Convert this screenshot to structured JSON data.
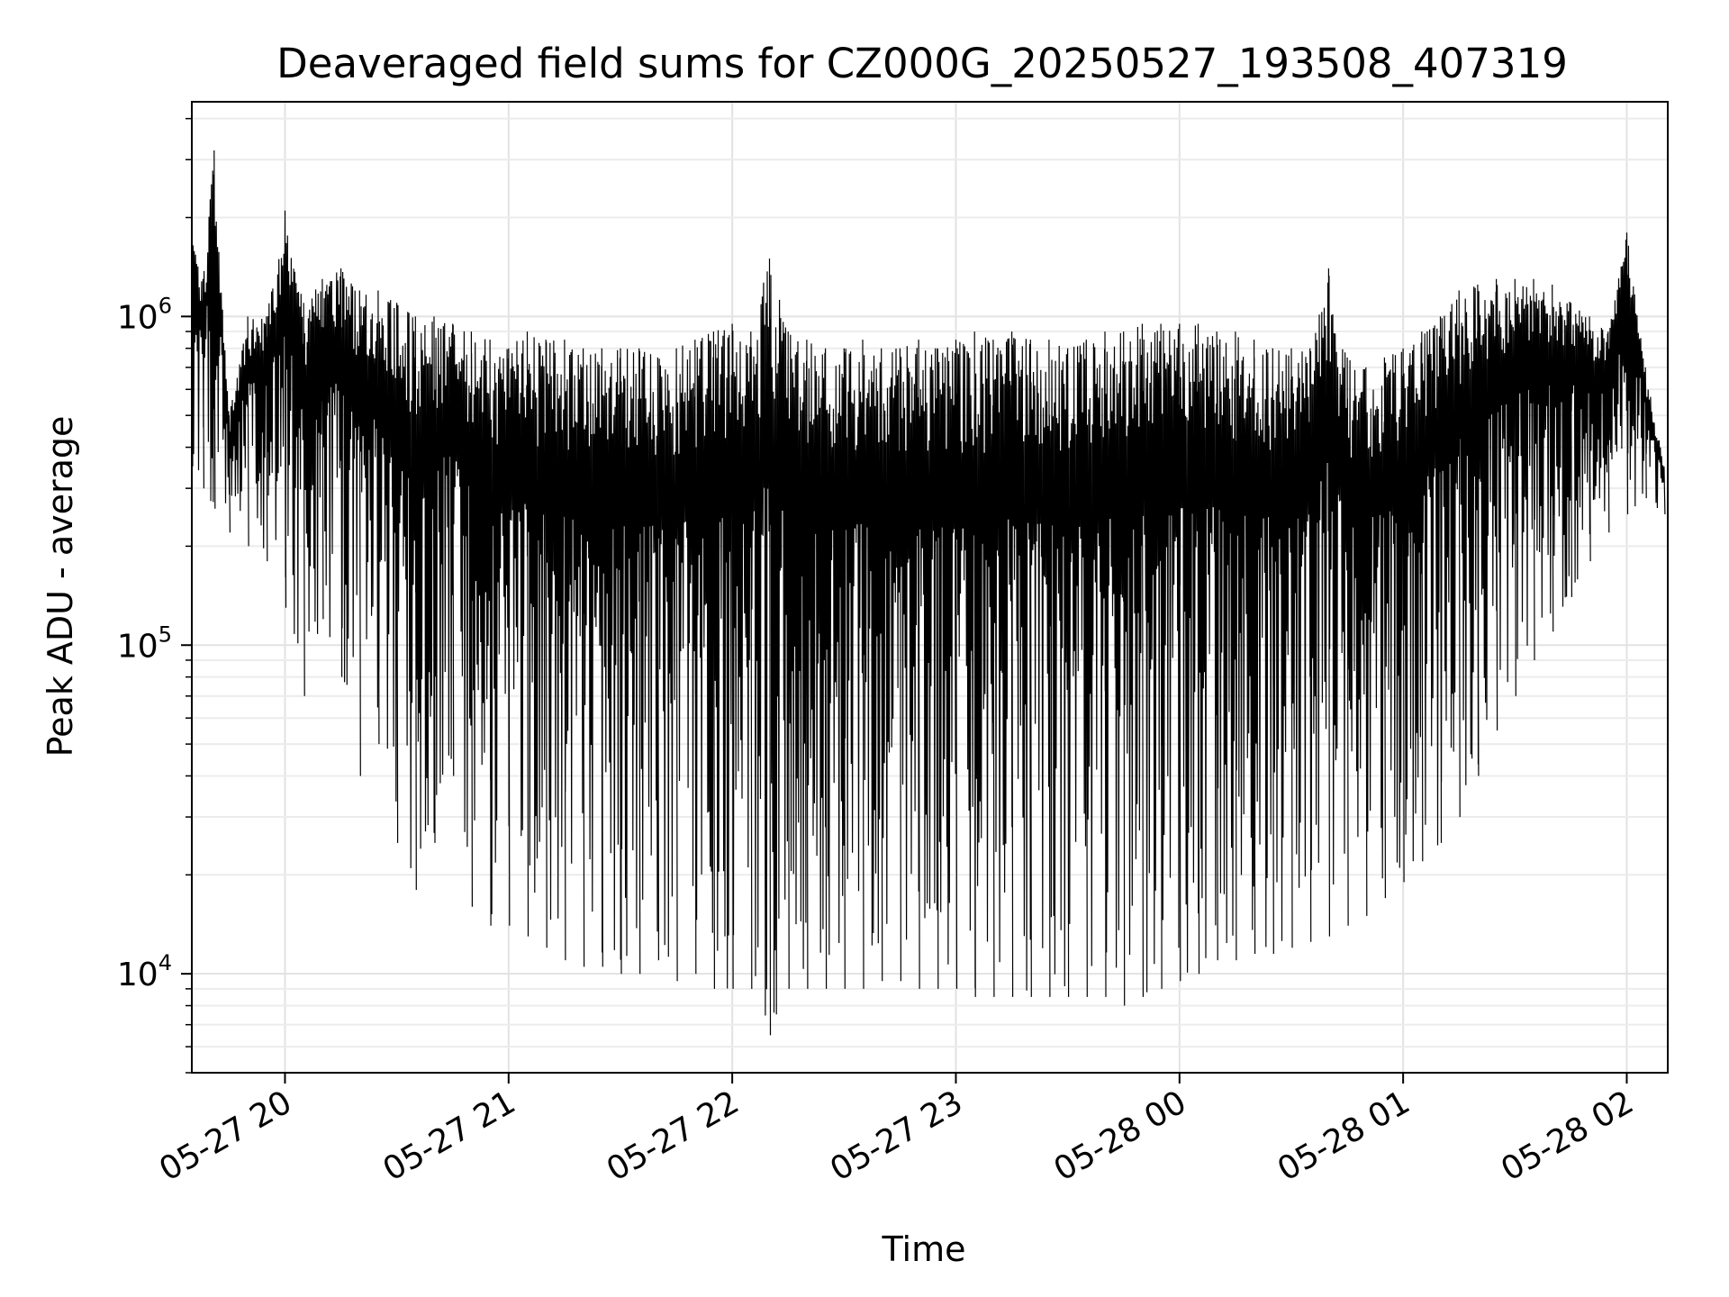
{
  "chart_data": {
    "type": "line",
    "title": "Deaveraged field sums for CZ000G_20250527_193508_407319",
    "xlabel": "Time",
    "ylabel": "Peak ADU - average",
    "y_scale": "log",
    "grid": true,
    "legend": "none",
    "line_color": "#000000",
    "xlim": [
      "2025-05-27 19:35",
      "2025-05-28 02:11"
    ],
    "ylim": [
      5000,
      4500000
    ],
    "x_ticks": [
      {
        "t": "2025-05-27 20:00",
        "label": "05-27 20"
      },
      {
        "t": "2025-05-27 21:00",
        "label": "05-27 21"
      },
      {
        "t": "2025-05-27 22:00",
        "label": "05-27 22"
      },
      {
        "t": "2025-05-27 23:00",
        "label": "05-27 23"
      },
      {
        "t": "2025-05-28 00:00",
        "label": "05-28 00"
      },
      {
        "t": "2025-05-28 01:00",
        "label": "05-28 01"
      },
      {
        "t": "2025-05-28 02:00",
        "label": "05-28 02"
      }
    ],
    "y_ticks": [
      {
        "value": 10000,
        "base": "10",
        "exp": "4"
      },
      {
        "value": 100000,
        "base": "10",
        "exp": "5"
      },
      {
        "value": 1000000,
        "base": "10",
        "exp": "6"
      }
    ],
    "series": [
      {
        "name": "",
        "x": [
          "2025-05-27 19:35",
          "2025-05-27 19:38",
          "2025-05-27 19:41",
          "2025-05-27 19:45",
          "2025-05-27 19:50",
          "2025-05-27 19:55",
          "2025-05-27 20:00",
          "2025-05-27 20:05",
          "2025-05-27 20:10",
          "2025-05-27 20:15",
          "2025-05-27 20:20",
          "2025-05-27 20:25",
          "2025-05-27 20:30",
          "2025-05-27 20:35",
          "2025-05-27 20:40",
          "2025-05-27 20:45",
          "2025-05-27 20:50",
          "2025-05-27 20:55",
          "2025-05-27 21:00",
          "2025-05-27 21:05",
          "2025-05-27 21:10",
          "2025-05-27 21:15",
          "2025-05-27 21:20",
          "2025-05-27 21:25",
          "2025-05-27 21:30",
          "2025-05-27 21:35",
          "2025-05-27 21:40",
          "2025-05-27 21:45",
          "2025-05-27 21:50",
          "2025-05-27 21:55",
          "2025-05-27 22:00",
          "2025-05-27 22:05",
          "2025-05-27 22:10",
          "2025-05-27 22:15",
          "2025-05-27 22:20",
          "2025-05-27 22:25",
          "2025-05-27 22:30",
          "2025-05-27 22:35",
          "2025-05-27 22:40",
          "2025-05-27 22:45",
          "2025-05-27 22:50",
          "2025-05-27 22:55",
          "2025-05-27 23:00",
          "2025-05-27 23:05",
          "2025-05-27 23:10",
          "2025-05-27 23:15",
          "2025-05-27 23:20",
          "2025-05-27 23:25",
          "2025-05-27 23:30",
          "2025-05-27 23:35",
          "2025-05-27 23:40",
          "2025-05-27 23:45",
          "2025-05-27 23:50",
          "2025-05-27 23:55",
          "2025-05-28 00:00",
          "2025-05-28 00:05",
          "2025-05-28 00:10",
          "2025-05-28 00:15",
          "2025-05-28 00:20",
          "2025-05-28 00:25",
          "2025-05-28 00:30",
          "2025-05-28 00:35",
          "2025-05-28 00:40",
          "2025-05-28 00:45",
          "2025-05-28 00:50",
          "2025-05-28 00:55",
          "2025-05-28 01:00",
          "2025-05-28 01:05",
          "2025-05-28 01:10",
          "2025-05-28 01:15",
          "2025-05-28 01:20",
          "2025-05-28 01:25",
          "2025-05-28 01:30",
          "2025-05-28 01:35",
          "2025-05-28 01:40",
          "2025-05-28 01:45",
          "2025-05-28 01:50",
          "2025-05-28 01:55",
          "2025-05-28 02:00",
          "2025-05-28 02:05",
          "2025-05-28 02:10"
        ],
        "upper": [
          1700000,
          1300000,
          3200000,
          500000,
          1000000,
          1000000,
          2100000,
          1100000,
          1300000,
          1400000,
          1200000,
          1200000,
          1100000,
          1000000,
          1000000,
          950000,
          900000,
          850000,
          800000,
          900000,
          850000,
          850000,
          800000,
          800000,
          800000,
          800000,
          750000,
          800000,
          850000,
          900000,
          950000,
          900000,
          1500000,
          900000,
          850000,
          800000,
          800000,
          850000,
          800000,
          800000,
          850000,
          800000,
          850000,
          900000,
          850000,
          900000,
          850000,
          850000,
          800000,
          850000,
          900000,
          900000,
          950000,
          950000,
          950000,
          950000,
          900000,
          900000,
          850000,
          800000,
          800000,
          800000,
          1400000,
          750000,
          700000,
          750000,
          800000,
          900000,
          1000000,
          1200000,
          1250000,
          1300000,
          1300000,
          1300000,
          1250000,
          1100000,
          1000000,
          900000,
          1800000,
          700000,
          350000
        ],
        "lower": [
          350000,
          300000,
          260000,
          220000,
          200000,
          180000,
          130000,
          70000,
          120000,
          80000,
          40000,
          50000,
          25000,
          18000,
          25000,
          40000,
          16000,
          14000,
          14000,
          13000,
          12000,
          11000,
          10500,
          10500,
          10000,
          10000,
          11000,
          9500,
          10000,
          9000,
          9000,
          9000,
          6500,
          9000,
          9000,
          9000,
          9000,
          9000,
          9500,
          9500,
          9000,
          9000,
          9000,
          8500,
          8500,
          8500,
          8500,
          8500,
          8500,
          8500,
          8500,
          8000,
          8500,
          9000,
          9500,
          10000,
          11000,
          11000,
          11500,
          11500,
          12000,
          12500,
          13000,
          14000,
          15000,
          17000,
          19000,
          22000,
          25000,
          30000,
          40000,
          55000,
          70000,
          90000,
          110000,
          140000,
          180000,
          220000,
          250000,
          280000,
          250000
        ]
      }
    ]
  }
}
